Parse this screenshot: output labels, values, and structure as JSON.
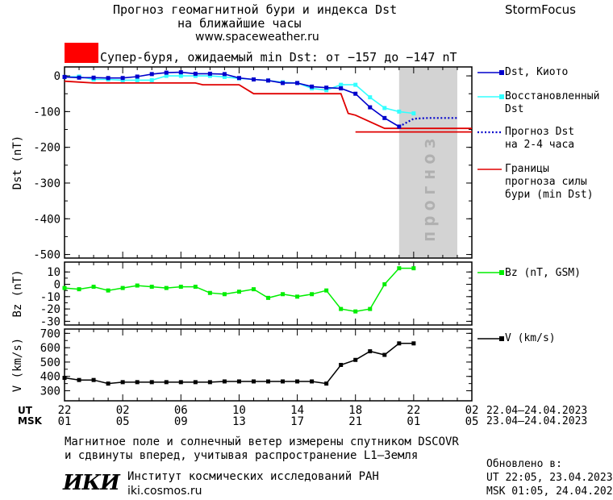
{
  "header": {
    "title_line1": "Прогноз геомагнитной бури и индекса Dst",
    "title_line2": "на ближайшие часы",
    "url": "www.spaceweather.ru",
    "brand": "StormFocus"
  },
  "alert": {
    "color": "#ff0000",
    "text": "Супер-буря, ожидаемый min Dst: от −157 до −147 nT"
  },
  "colors": {
    "dst_kyoto": "#0000cc",
    "dst_restored": "#33ffff",
    "forecast": "#0000cc",
    "bounds": "#e00000",
    "bz": "#00ee00",
    "speed": "#000000",
    "forecast_shade": "#d3d3d3"
  },
  "legend": {
    "dst_kyoto": "Dst, Киото",
    "dst_restored_1": "Восстановленный",
    "dst_restored_2": "Dst",
    "forecast_1": "Прогноз Dst",
    "forecast_2": "на 2-4 часа",
    "bounds_1": "Границы",
    "bounds_2": "прогноза силы",
    "bounds_3": "бури (min Dst)",
    "bz": "Bz (nT, GSM)",
    "v": "V (km/s)"
  },
  "shade_label": "прогноз",
  "time_axis": {
    "ut_label": "UT",
    "msk_label": "MSK",
    "ut_ticks": [
      "22",
      "02",
      "06",
      "10",
      "14",
      "18",
      "22",
      "02"
    ],
    "msk_ticks": [
      "01",
      "05",
      "09",
      "13",
      "17",
      "21",
      "01",
      "05"
    ],
    "ut_range": "22.04–24.04.2023",
    "msk_range": "23.04–24.04.2023"
  },
  "footer": {
    "note_line1": "Магнитное поле и солнечный ветер измерены спутником DSCOVR",
    "note_line2": "и сдвинуты вперед, учитывая распространение L1–Земля",
    "logo": "ИКИ",
    "institute": "Институт космических исследований РАН",
    "site": "iki.cosmos.ru",
    "updated_label": "Обновлено в:",
    "updated_ut": "UT  22:05, 23.04.2023",
    "updated_msk": "MSK 01:05, 24.04.2023"
  },
  "chart_data": [
    {
      "type": "line",
      "ylabel": "Dst (nT)",
      "ylim": [
        -510,
        25
      ],
      "yticks": [
        0,
        -100,
        -200,
        -300,
        -400,
        -500
      ],
      "xlim": [
        22,
        50
      ],
      "forecast_window": [
        45,
        49
      ],
      "series": [
        {
          "name": "Dst, Киото",
          "x": [
            22,
            23,
            24,
            25,
            26,
            27,
            28,
            29,
            30,
            31,
            32,
            33,
            34,
            35,
            36,
            37,
            38,
            39,
            40,
            41,
            42,
            43,
            44,
            45
          ],
          "y": [
            -3,
            -5,
            -5,
            -6,
            -6,
            -2,
            5,
            9,
            10,
            6,
            6,
            5,
            -6,
            -10,
            -13,
            -20,
            -20,
            -30,
            -33,
            -35,
            -50,
            -88,
            -118,
            -142
          ]
        },
        {
          "name": "Восстановленный Dst",
          "x": [
            22,
            23,
            24,
            25,
            26,
            27,
            28,
            29,
            30,
            31,
            32,
            33,
            34,
            35,
            36,
            37,
            38,
            39,
            40,
            41,
            42,
            43,
            44,
            45,
            46
          ],
          "y": [
            -3,
            -2,
            -10,
            -10,
            -12,
            -12,
            -12,
            0,
            0,
            0,
            0,
            -3,
            -7,
            -10,
            -13,
            -18,
            -20,
            -35,
            -40,
            -25,
            -25,
            -60,
            -90,
            -100,
            -105
          ]
        },
        {
          "name": "Прогноз Dst на 2-4 часа",
          "x": [
            45,
            46,
            47,
            48,
            49
          ],
          "y": [
            -142,
            -120,
            -118,
            -118,
            -118
          ]
        },
        {
          "name": "Границы прогноза силы бури (min Dst)",
          "x": [
            22,
            24,
            27,
            30,
            31,
            31.5,
            34,
            35,
            38,
            39,
            41,
            41.5,
            42,
            44,
            50
          ],
          "y": [
            -15,
            -20,
            -20,
            -20,
            -20,
            -25,
            -25,
            -50,
            -50,
            -50,
            -50,
            -105,
            -110,
            -147,
            -147
          ]
        },
        {
          "name": "Границы прогноза силы бури (min Dst)",
          "x": [
            42,
            50
          ],
          "y": [
            -157,
            -157
          ]
        }
      ]
    },
    {
      "type": "line",
      "ylabel": "Bz (nT)",
      "ylim": [
        -33,
        18
      ],
      "yticks": [
        10,
        0,
        -10,
        -20,
        -30
      ],
      "xlim": [
        22,
        50
      ],
      "series": [
        {
          "name": "Bz (nT, GSM)",
          "x": [
            22,
            23,
            24,
            25,
            26,
            27,
            28,
            29,
            30,
            31,
            32,
            33,
            34,
            35,
            36,
            37,
            38,
            39,
            40,
            41,
            42,
            43,
            44,
            45,
            46
          ],
          "y": [
            -3,
            -4,
            -2,
            -5,
            -3,
            -1,
            -2,
            -3,
            -2,
            -2,
            -7,
            -8,
            -6,
            -4,
            -11,
            -8,
            -10,
            -8,
            -5,
            -20,
            -22,
            -20,
            0,
            13,
            13
          ]
        }
      ]
    },
    {
      "type": "line",
      "ylabel": "V (km/s)",
      "ylim": [
        230,
        730
      ],
      "yticks": [
        700,
        600,
        500,
        400,
        300
      ],
      "xlim": [
        22,
        50
      ],
      "series": [
        {
          "name": "V (km/s)",
          "x": [
            22,
            23,
            24,
            25,
            26,
            27,
            28,
            29,
            30,
            31,
            32,
            33,
            34,
            35,
            36,
            37,
            38,
            39,
            40,
            41,
            42,
            43,
            44,
            45,
            46
          ],
          "y": [
            390,
            375,
            375,
            350,
            360,
            360,
            360,
            360,
            360,
            360,
            360,
            365,
            365,
            365,
            365,
            365,
            365,
            365,
            350,
            480,
            515,
            575,
            550,
            630,
            630
          ]
        }
      ]
    }
  ]
}
